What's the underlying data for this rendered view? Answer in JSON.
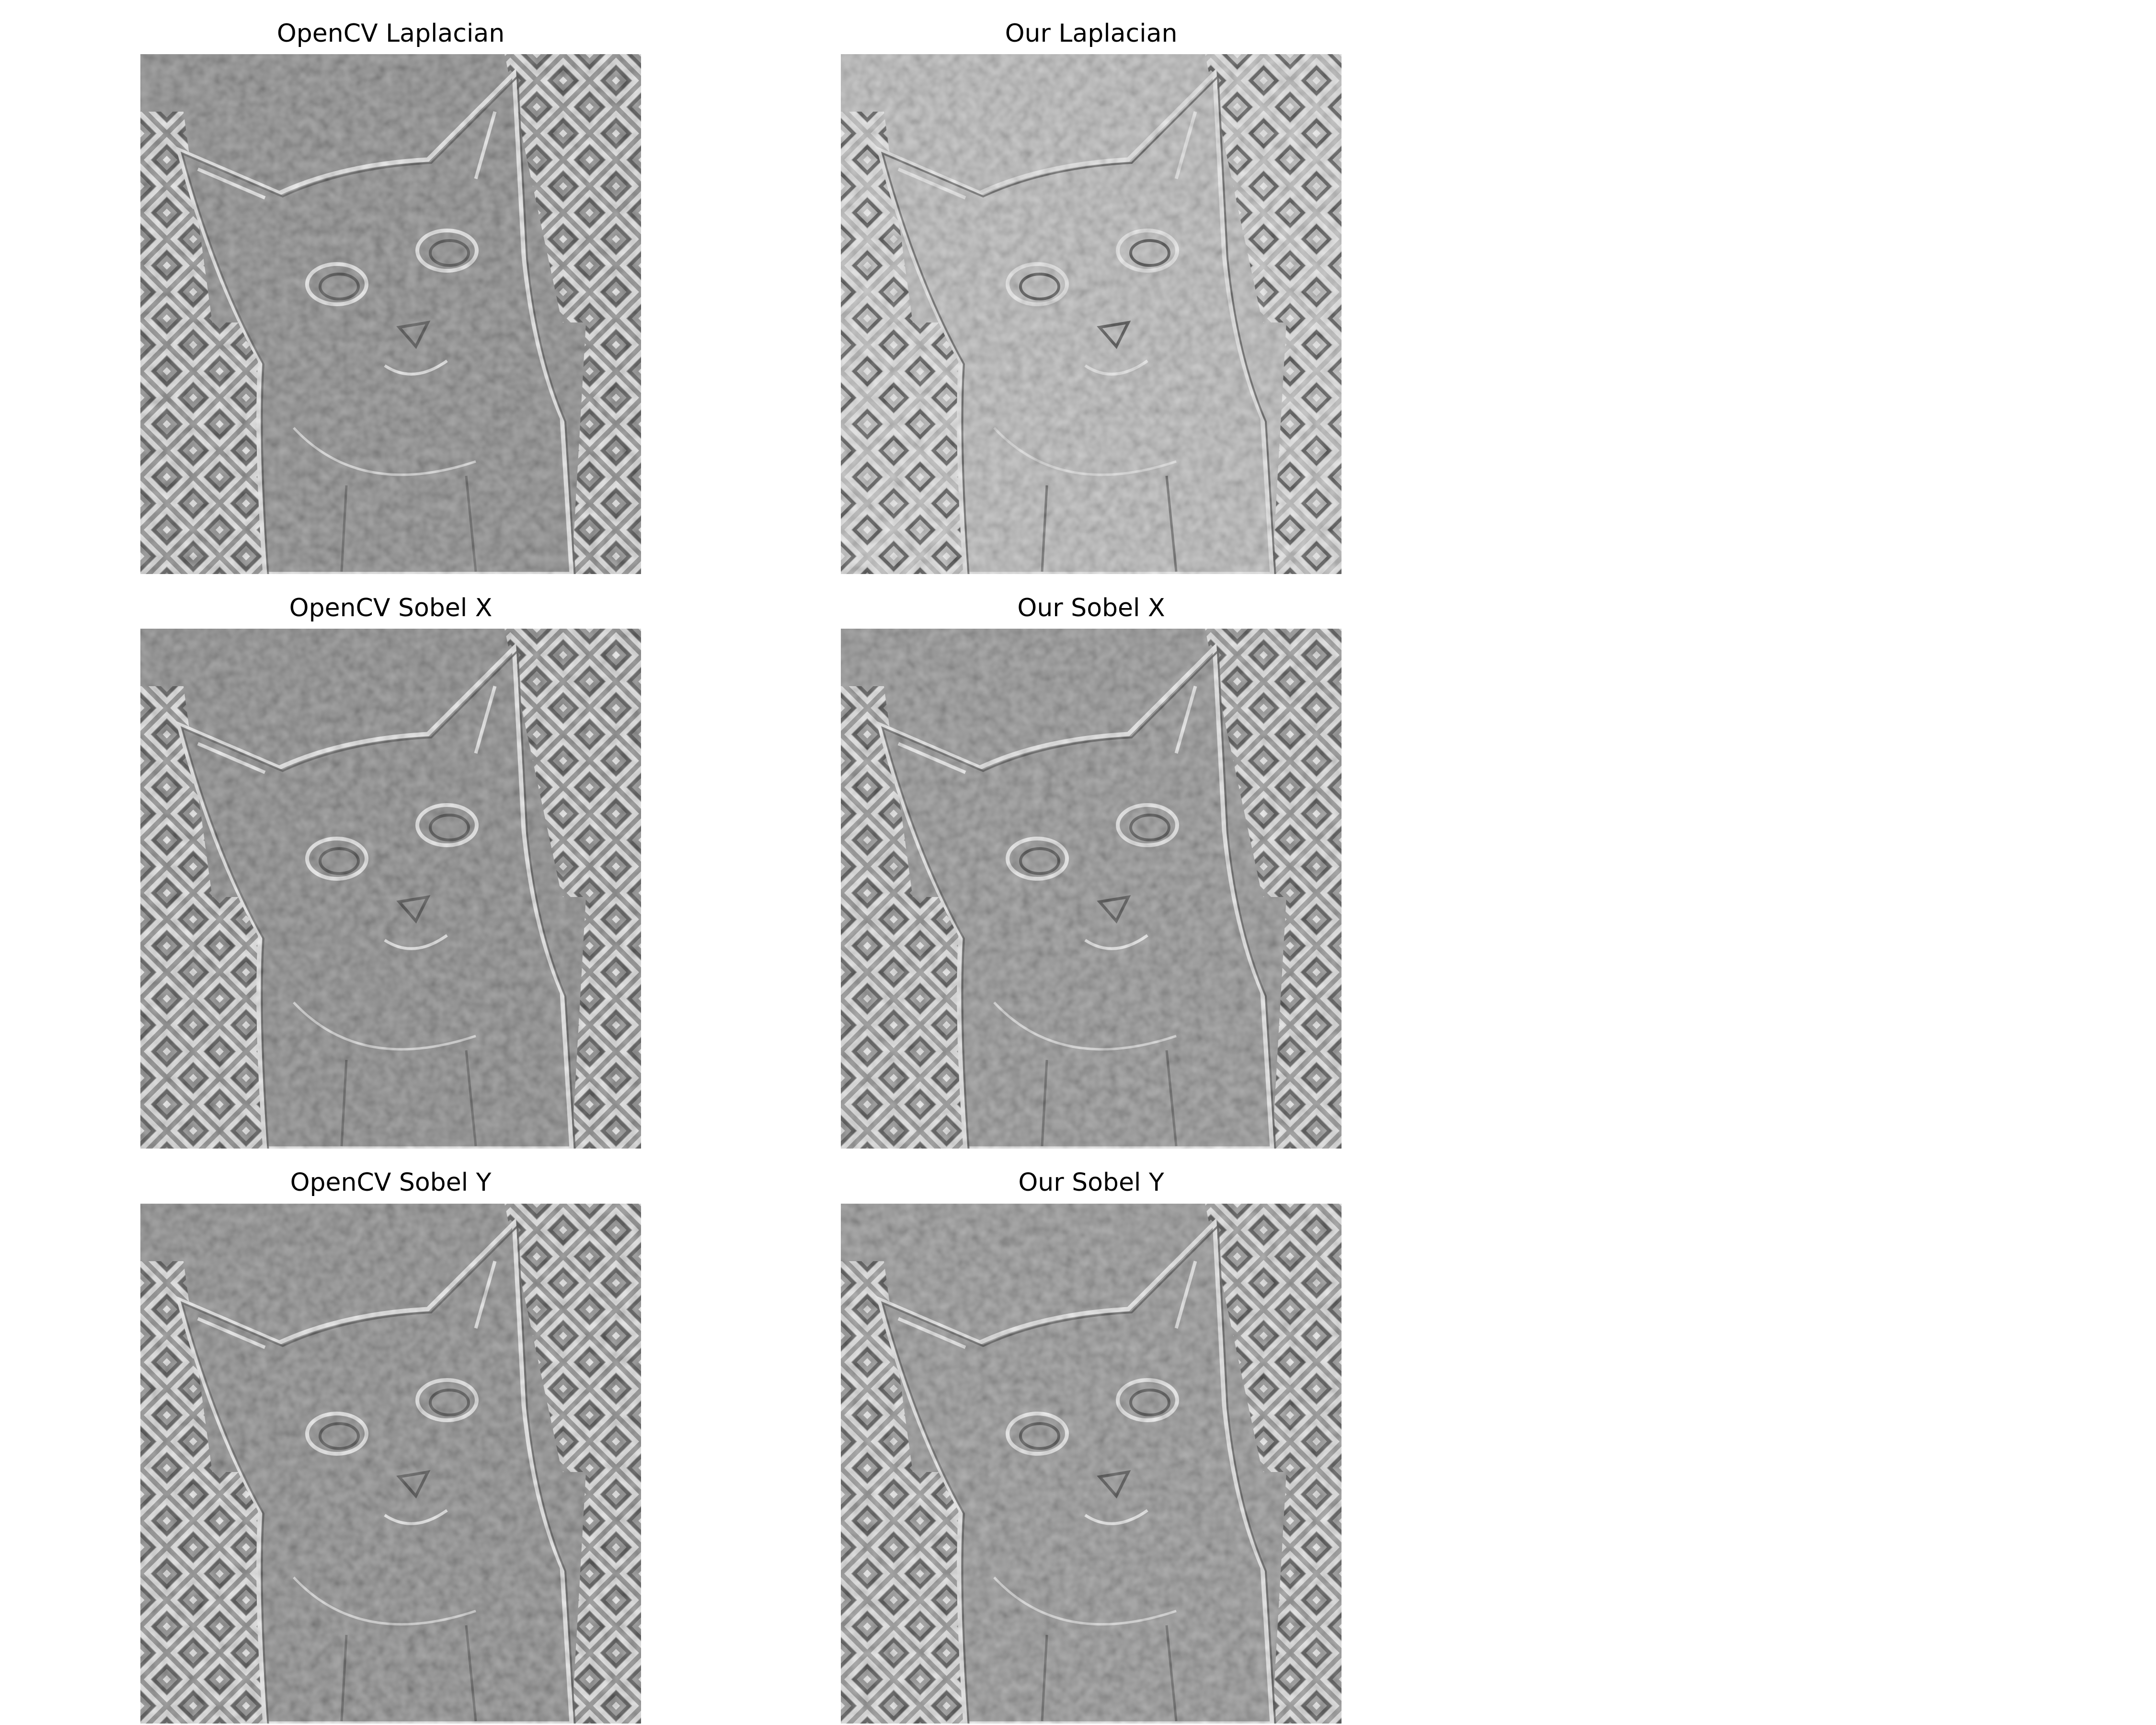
{
  "figure": {
    "panels": [
      {
        "id": "opencv-laplacian",
        "title": "OpenCV Laplacian",
        "filter": "laplacian",
        "source": "opencv",
        "tone": "#7c7c7c"
      },
      {
        "id": "our-laplacian",
        "title": "Our Laplacian",
        "filter": "laplacian",
        "source": "ours",
        "tone": "#b4b4b4"
      },
      {
        "id": "opencv-sobel-x",
        "title": "OpenCV Sobel X",
        "filter": "sobel-x",
        "source": "opencv",
        "tone": "#7a7a7a"
      },
      {
        "id": "our-sobel-x",
        "title": "Our Sobel X",
        "filter": "sobel-x",
        "source": "ours",
        "tone": "#868686"
      },
      {
        "id": "opencv-sobel-y",
        "title": "OpenCV Sobel Y",
        "filter": "sobel-y",
        "source": "opencv",
        "tone": "#7d7d7d"
      },
      {
        "id": "our-sobel-y",
        "title": "Our Sobel Y",
        "filter": "sobel-y",
        "source": "ours",
        "tone": "#888888"
      }
    ]
  }
}
